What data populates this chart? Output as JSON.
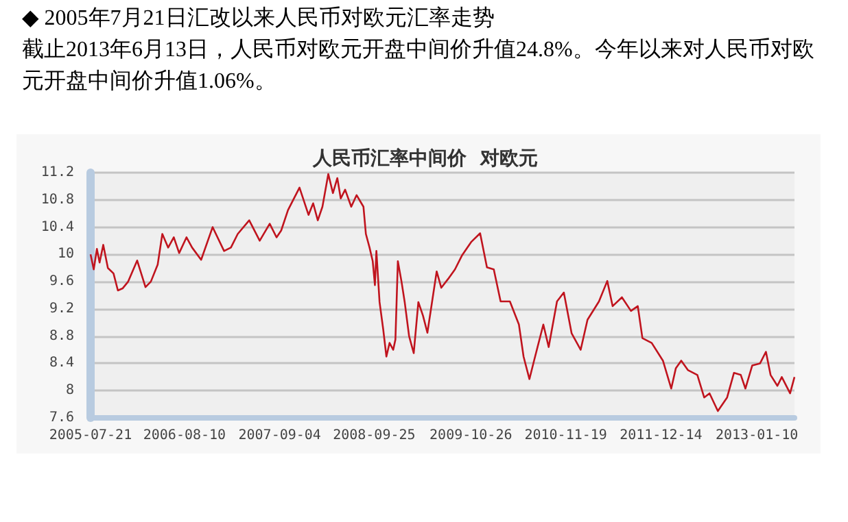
{
  "chart_data": {
    "type": "line",
    "title": "◆  2005年7月21日汇改以来人民币对欧元汇率走势",
    "subtitle": "截止2013年6月13日，人民币对欧元开盘中间价升值24.8%。今年以来对人民币对欧元开盘中间价升值1.06%。",
    "annotations": [
      "人民币汇率中间价  对欧元"
    ],
    "xlim": [
      "2005-07-21",
      "2013-06-13"
    ],
    "xticks": [
      "2005-07-21",
      "2006-08-10",
      "2007-09-04",
      "2008-09-25",
      "2009-10-26",
      "2010-11-19",
      "2011-12-14",
      "2013-01-10"
    ],
    "ylim": [
      7.6,
      11.2
    ],
    "yticks": [
      7.6,
      8,
      8.4,
      8.8,
      9.2,
      9.6,
      10,
      10.4,
      10.8,
      11.2
    ],
    "grid": "y",
    "marker": "none",
    "line_style": "solid",
    "series": [
      {
        "color": "#c0141e",
        "x": [
          "2005-07-21",
          "2005-08-03",
          "2005-08-16",
          "2005-08-27",
          "2005-09-11",
          "2005-09-30",
          "2005-10-23",
          "2005-11-10",
          "2005-11-29",
          "2005-12-22",
          "2006-01-28",
          "2006-03-03",
          "2006-03-25",
          "2006-04-22",
          "2006-05-11",
          "2006-06-04",
          "2006-06-27",
          "2006-07-19",
          "2006-08-18",
          "2006-09-10",
          "2006-10-17",
          "2006-12-03",
          "2007-01-19",
          "2007-02-16",
          "2007-03-16",
          "2007-05-02",
          "2007-06-14",
          "2007-07-25",
          "2007-08-22",
          "2007-09-10",
          "2007-10-08",
          "2007-11-24",
          "2007-12-31",
          "2008-01-19",
          "2008-02-07",
          "2008-02-26",
          "2008-03-21",
          "2008-04-09",
          "2008-04-27",
          "2008-05-11",
          "2008-05-29",
          "2008-06-23",
          "2008-07-15",
          "2008-08-12",
          "2008-08-22",
          "2008-09-06",
          "2008-09-19",
          "2008-09-28",
          "2008-10-04",
          "2008-10-17",
          "2008-11-01",
          "2008-11-14",
          "2008-11-27",
          "2008-12-12",
          "2008-12-21",
          "2008-12-31",
          "2009-01-15",
          "2009-01-28",
          "2009-02-15",
          "2009-03-06",
          "2009-03-25",
          "2009-04-13",
          "2009-05-01",
          "2009-05-20",
          "2009-06-08",
          "2009-06-27",
          "2009-07-25",
          "2009-08-22",
          "2009-09-19",
          "2009-10-27",
          "2009-12-03",
          "2009-12-31",
          "2010-01-28",
          "2010-02-25",
          "2010-04-04",
          "2010-05-11",
          "2010-05-30",
          "2010-06-23",
          "2010-07-12",
          "2010-08-19",
          "2010-09-10",
          "2010-10-14",
          "2010-11-11",
          "2010-12-13",
          "2011-01-19",
          "2011-02-16",
          "2011-04-04",
          "2011-05-08",
          "2011-05-30",
          "2011-07-07",
          "2011-08-13",
          "2011-09-10",
          "2011-09-29",
          "2011-11-06",
          "2011-12-22",
          "2012-01-25",
          "2012-02-13",
          "2012-03-06",
          "2012-04-03",
          "2012-05-11",
          "2012-06-08",
          "2012-06-30",
          "2012-08-03",
          "2012-09-10",
          "2012-10-08",
          "2012-11-05",
          "2012-11-24",
          "2012-12-22",
          "2013-01-23",
          "2013-02-16",
          "2013-03-07",
          "2013-04-04",
          "2013-04-22",
          "2013-05-26",
          "2013-06-13"
        ],
        "values": [
          10.0,
          9.78,
          10.08,
          9.88,
          10.14,
          9.8,
          9.72,
          9.47,
          9.5,
          9.6,
          9.91,
          9.52,
          9.6,
          9.85,
          10.3,
          10.1,
          10.25,
          10.02,
          10.25,
          10.1,
          9.92,
          10.4,
          10.05,
          10.1,
          10.3,
          10.5,
          10.2,
          10.45,
          10.25,
          10.35,
          10.65,
          10.98,
          10.58,
          10.75,
          10.5,
          10.7,
          11.18,
          10.9,
          11.12,
          10.82,
          10.95,
          10.7,
          10.87,
          10.7,
          10.3,
          10.1,
          9.9,
          9.55,
          10.05,
          9.3,
          8.9,
          8.5,
          8.7,
          8.6,
          8.75,
          9.9,
          9.6,
          9.3,
          8.8,
          8.55,
          9.3,
          9.1,
          8.85,
          9.3,
          9.75,
          9.51,
          9.64,
          9.78,
          9.98,
          10.18,
          10.31,
          9.81,
          9.78,
          9.31,
          9.31,
          8.97,
          8.5,
          8.17,
          8.44,
          8.97,
          8.64,
          9.31,
          9.44,
          8.84,
          8.6,
          9.04,
          9.31,
          9.61,
          9.24,
          9.37,
          9.17,
          9.24,
          8.77,
          8.7,
          8.44,
          8.03,
          8.33,
          8.44,
          8.3,
          8.23,
          7.9,
          7.96,
          7.7,
          7.9,
          8.26,
          8.23,
          8.03,
          8.37,
          8.4,
          8.57,
          8.23,
          8.07,
          8.2,
          7.96,
          8.2
        ]
      }
    ]
  }
}
